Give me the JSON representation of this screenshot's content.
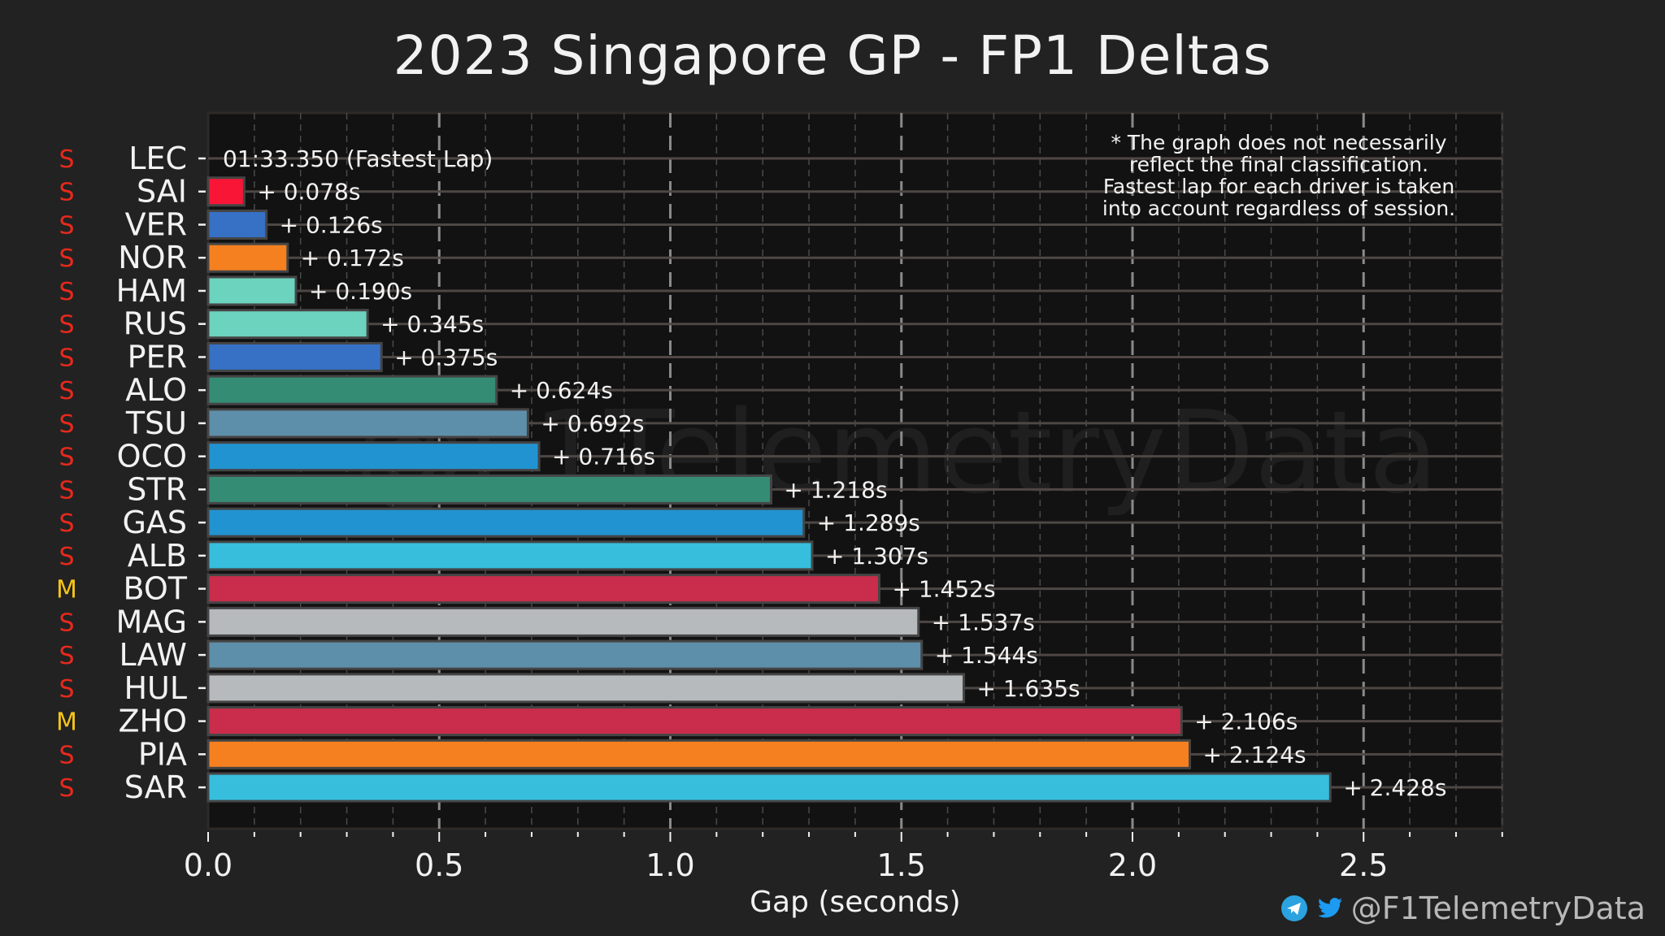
{
  "title": "2023 Singapore GP - FP1 Deltas",
  "footer": {
    "handle": "@F1TelemetryData",
    "icons": [
      "telegram-icon",
      "twitter-icon"
    ]
  },
  "watermark": "@F1TelemetryData",
  "note": [
    "* The graph does not necessarily",
    "reflect the final classification.",
    "Fastest lap for each driver is taken",
    "into account regardless of session."
  ],
  "compound_colors": {
    "S": "#e8291c",
    "M": "#f5c518"
  },
  "chart_data": {
    "type": "bar",
    "orientation": "horizontal",
    "title": "2023 Singapore GP - FP1 Deltas",
    "xlabel": "Gap (seconds)",
    "ylabel": "",
    "xlim": [
      0,
      2.8
    ],
    "xticks": [
      "0.0",
      "0.5",
      "1.0",
      "1.5",
      "2.0",
      "2.5"
    ],
    "xtick_values": [
      0.0,
      0.5,
      1.0,
      1.5,
      2.0,
      2.5
    ],
    "minor_tick_step": 0.1,
    "grid": true,
    "fastest_lap_label": "01:33.350 (Fastest Lap)",
    "categories": [
      "LEC",
      "SAI",
      "VER",
      "NOR",
      "HAM",
      "RUS",
      "PER",
      "ALO",
      "TSU",
      "OCO",
      "STR",
      "GAS",
      "ALB",
      "BOT",
      "MAG",
      "LAW",
      "HUL",
      "ZHO",
      "PIA",
      "SAR"
    ],
    "values": [
      0.0,
      0.078,
      0.126,
      0.172,
      0.19,
      0.345,
      0.375,
      0.624,
      0.692,
      0.716,
      1.218,
      1.289,
      1.307,
      1.452,
      1.537,
      1.544,
      1.635,
      2.106,
      2.124,
      2.428
    ],
    "labels": [
      "",
      "+ 0.078s",
      "+ 0.126s",
      "+ 0.172s",
      "+ 0.190s",
      "+ 0.345s",
      "+ 0.375s",
      "+ 0.624s",
      "+ 0.692s",
      "+ 0.716s",
      "+ 1.218s",
      "+ 1.289s",
      "+ 1.307s",
      "+ 1.452s",
      "+ 1.537s",
      "+ 1.544s",
      "+ 1.635s",
      "+ 2.106s",
      "+ 2.124s",
      "+ 2.428s"
    ],
    "compounds": [
      "S",
      "S",
      "S",
      "S",
      "S",
      "S",
      "S",
      "S",
      "S",
      "S",
      "S",
      "S",
      "S",
      "M",
      "S",
      "S",
      "S",
      "M",
      "S",
      "S"
    ],
    "colors": [
      "#e8002d",
      "#f91536",
      "#3671c6",
      "#f58020",
      "#6cd3bf",
      "#6cd3bf",
      "#3671c6",
      "#358c75",
      "#5e8faa",
      "#2293d1",
      "#358c75",
      "#2293d1",
      "#37bedd",
      "#c92d4b",
      "#b6babd",
      "#5e8faa",
      "#b6babd",
      "#c92d4b",
      "#f58020",
      "#37bedd"
    ]
  }
}
